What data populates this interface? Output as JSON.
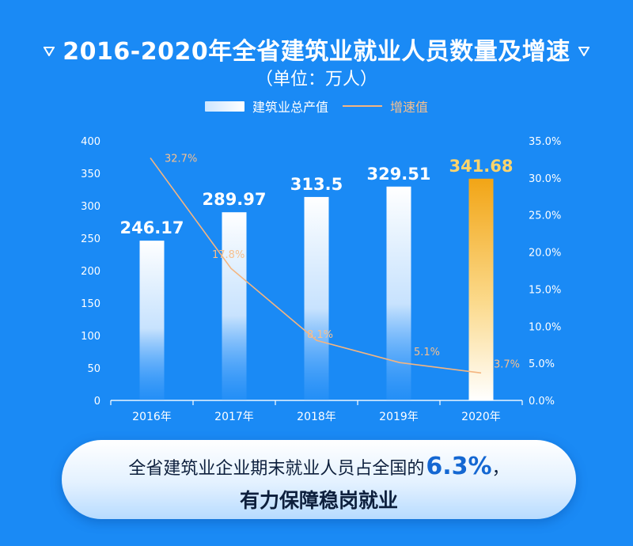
{
  "header": {
    "title": "2016-2020年全省建筑业就业人员数量及增速",
    "subtitle": "（单位：万人）"
  },
  "legend": {
    "bar_label": "建筑业总产值",
    "line_label": "增速值"
  },
  "chart_data": {
    "type": "bar",
    "categories": [
      "2016年",
      "2017年",
      "2018年",
      "2019年",
      "2020年"
    ],
    "series": [
      {
        "name": "建筑业总产值",
        "type": "bar",
        "axis": "left",
        "values": [
          246.17,
          289.97,
          313.5,
          329.51,
          341.68
        ],
        "labels": [
          "246.17",
          "289.97",
          "313.5",
          "329.51",
          "341.68"
        ]
      },
      {
        "name": "增速值",
        "type": "line",
        "axis": "right",
        "values": [
          32.7,
          17.8,
          8.1,
          5.1,
          3.7
        ],
        "labels": [
          "32.7%",
          "17.8%",
          "8.1%",
          "5.1%",
          "3.7%"
        ]
      }
    ],
    "y_left": {
      "ylim": [
        0,
        400
      ],
      "ticks": [
        "0",
        "50",
        "100",
        "150",
        "200",
        "250",
        "300",
        "350",
        "400"
      ]
    },
    "y_right": {
      "ylim": [
        0,
        35
      ],
      "ticks": [
        "0.0%",
        "5.0%",
        "10.0%",
        "15.0%",
        "20.0%",
        "25.0%",
        "30.0%",
        "35.0%"
      ]
    },
    "highlight_category": "2020年",
    "legend_position": "top-center",
    "grid": false
  },
  "banner": {
    "line1": "全省建筑业企业期末就业人员占全国的",
    "highlight": "6.3%",
    "line1_tail": "，",
    "line2": "有力保障稳岗就业"
  },
  "colors": {
    "background": "#1a8af5",
    "bar_top": "#ffffff",
    "highlight_bar_top": "#f2a516",
    "highlight_bar_bottom": "#ffffff",
    "highlight_value": "#ffd46b",
    "line": "#f4b580",
    "line_label": "#f6c08f"
  }
}
